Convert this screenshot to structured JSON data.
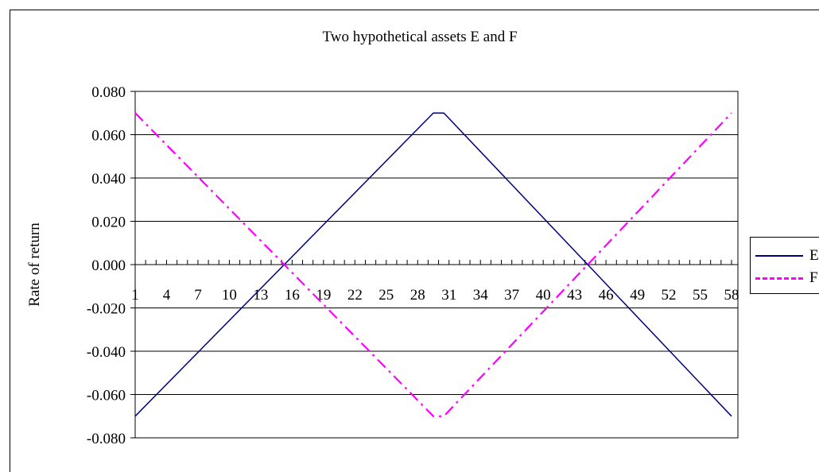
{
  "chart_data": {
    "type": "line",
    "title": "Two hypothetical assets E and F",
    "xlabel": "",
    "ylabel": "Rate of return",
    "x_ticks": [
      "1",
      "4",
      "7",
      "10",
      "13",
      "16",
      "19",
      "22",
      "25",
      "28",
      "31",
      "34",
      "37",
      "40",
      "43",
      "46",
      "49",
      "52",
      "55",
      "58"
    ],
    "y_ticks": [
      "0.080",
      "0.060",
      "0.040",
      "0.020",
      "0.000",
      "-0.020",
      "-0.040",
      "-0.060",
      "-0.080"
    ],
    "xlim": [
      1,
      58
    ],
    "ylim": [
      -0.08,
      0.08
    ],
    "grid": "horizontal",
    "legend_position": "right",
    "series": [
      {
        "name": "E",
        "color": "#000080",
        "style": "solid",
        "x": [
          1,
          29.5,
          30.5,
          58
        ],
        "y": [
          -0.07,
          0.07,
          0.07,
          -0.07
        ]
      },
      {
        "name": "F",
        "color": "#ff00ff",
        "style": "dash-dot",
        "x": [
          1,
          29.5,
          30.5,
          58
        ],
        "y": [
          0.07,
          -0.07,
          -0.07,
          0.07
        ]
      }
    ]
  }
}
